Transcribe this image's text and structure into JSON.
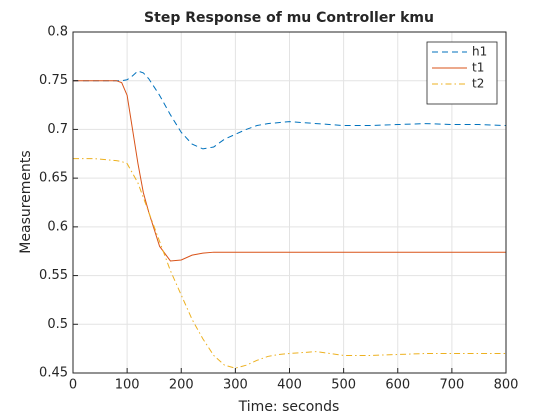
{
  "chart_data": {
    "type": "line",
    "title": "Step Response of mu Controller kmu",
    "x_label": "Time: seconds",
    "y_label": "Measurements",
    "x": [
      0,
      20,
      40,
      60,
      80,
      90,
      100,
      110,
      120,
      130,
      140,
      160,
      180,
      200,
      220,
      240,
      260,
      280,
      300,
      320,
      340,
      360,
      380,
      400,
      450,
      500,
      550,
      600,
      650,
      700,
      750,
      800
    ],
    "series": [
      {
        "name": "h1",
        "color": "#0072bd",
        "line_style": "dashed",
        "values": [
          0.75,
          0.75,
          0.75,
          0.75,
          0.75,
          0.75,
          0.751,
          0.755,
          0.76,
          0.758,
          0.752,
          0.735,
          0.715,
          0.697,
          0.685,
          0.68,
          0.682,
          0.69,
          0.695,
          0.7,
          0.704,
          0.706,
          0.707,
          0.708,
          0.706,
          0.704,
          0.704,
          0.705,
          0.706,
          0.705,
          0.705,
          0.704
        ]
      },
      {
        "name": "t1",
        "color": "#d95319",
        "line_style": "solid",
        "values": [
          0.75,
          0.75,
          0.75,
          0.75,
          0.75,
          0.748,
          0.735,
          0.7,
          0.665,
          0.635,
          0.615,
          0.58,
          0.565,
          0.566,
          0.571,
          0.573,
          0.574,
          0.574,
          0.574,
          0.574,
          0.574,
          0.574,
          0.574,
          0.574,
          0.574,
          0.574,
          0.574,
          0.574,
          0.574,
          0.574,
          0.574,
          0.574
        ]
      },
      {
        "name": "t2",
        "color": "#edb120",
        "line_style": "dashdot",
        "values": [
          0.67,
          0.67,
          0.67,
          0.669,
          0.668,
          0.667,
          0.665,
          0.655,
          0.645,
          0.63,
          0.615,
          0.585,
          0.555,
          0.53,
          0.505,
          0.485,
          0.468,
          0.458,
          0.455,
          0.458,
          0.463,
          0.467,
          0.469,
          0.47,
          0.472,
          0.468,
          0.468,
          0.469,
          0.47,
          0.47,
          0.47,
          0.47
        ]
      }
    ],
    "xlim": [
      0,
      800
    ],
    "xticks": [
      0,
      100,
      200,
      300,
      400,
      500,
      600,
      700,
      800
    ],
    "ylim": [
      0.45,
      0.8
    ],
    "yticks": [
      0.45,
      0.5,
      0.55,
      0.6,
      0.65,
      0.7,
      0.75,
      0.8
    ],
    "grid": true,
    "legend_position": "northeast"
  }
}
